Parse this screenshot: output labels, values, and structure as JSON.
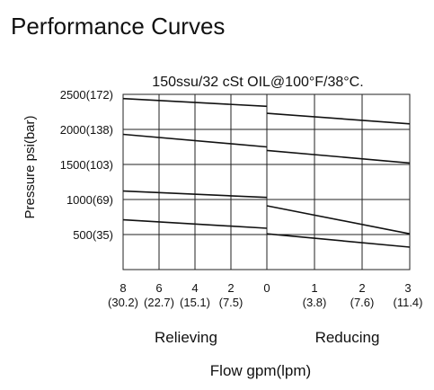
{
  "page": {
    "title": "Performance Curves"
  },
  "chart_data": {
    "type": "line",
    "subtitle": "150ssu/32 cSt OIL@100°F/38°C.",
    "ylabel": "Pressure psi(bar)",
    "xlabel": "Flow gpm(lpm)",
    "ylim": [
      0,
      2500
    ],
    "y_ticks": [
      {
        "value": 500,
        "label": "500(35)"
      },
      {
        "value": 1000,
        "label": "1000(69)"
      },
      {
        "value": 1500,
        "label": "1500(103)"
      },
      {
        "value": 2000,
        "label": "2000(138)"
      },
      {
        "value": 2500,
        "label": "2500(172)"
      }
    ],
    "grid": true,
    "panels": [
      {
        "name": "Relieving",
        "xlim": [
          8,
          0
        ],
        "x_ticks": [
          {
            "value": 8,
            "label": "8",
            "sublabel": "(30.2)"
          },
          {
            "value": 6,
            "label": "6",
            "sublabel": "(22.7)"
          },
          {
            "value": 4,
            "label": "4",
            "sublabel": "(15.1)"
          },
          {
            "value": 2,
            "label": "2",
            "sublabel": "(7.5)"
          },
          {
            "value": 0,
            "label": "0",
            "sublabel": ""
          }
        ],
        "series": [
          {
            "x": [
              8,
              0
            ],
            "y": [
              2440,
              2330
            ]
          },
          {
            "x": [
              8,
              0
            ],
            "y": [
              1930,
              1750
            ]
          },
          {
            "x": [
              8,
              0
            ],
            "y": [
              1120,
              1030
            ]
          },
          {
            "x": [
              8,
              0
            ],
            "y": [
              710,
              590
            ]
          }
        ]
      },
      {
        "name": "Reducing",
        "xlim": [
          0,
          3
        ],
        "x_ticks": [
          {
            "value": 1,
            "label": "1",
            "sublabel": "(3.8)"
          },
          {
            "value": 2,
            "label": "2",
            "sublabel": "(7.6)"
          },
          {
            "value": 3,
            "label": "3",
            "sublabel": "(11.4)"
          }
        ],
        "series": [
          {
            "x": [
              0,
              3
            ],
            "y": [
              2230,
              2080
            ]
          },
          {
            "x": [
              0,
              3
            ],
            "y": [
              1700,
              1520
            ]
          },
          {
            "x": [
              0,
              3
            ],
            "y": [
              910,
              510
            ]
          },
          {
            "x": [
              0,
              3
            ],
            "y": [
              510,
              320
            ]
          }
        ]
      }
    ]
  }
}
